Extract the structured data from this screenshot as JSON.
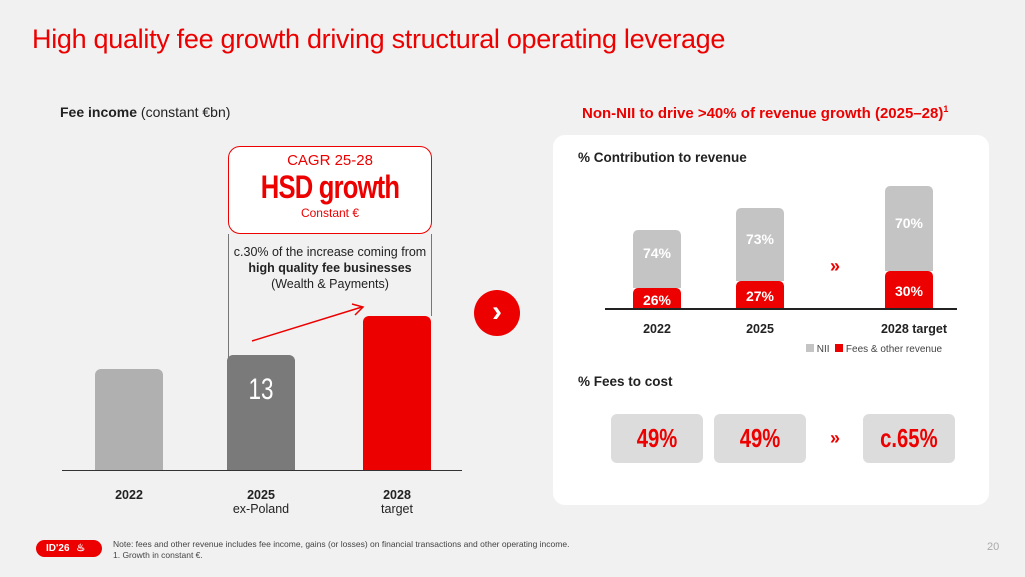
{
  "title": "High quality fee growth driving structural operating leverage",
  "left": {
    "heading": "Fee income",
    "heading_suffix": "(constant €bn)",
    "cagr": {
      "label": "CAGR 25-28",
      "value": "HSD growth",
      "note": "Constant €"
    },
    "note_pre": "c.30% of the increase coming from ",
    "note_bold": "high quality fee businesses",
    "note_post": "(Wealth & Payments)",
    "chart_data": {
      "type": "bar",
      "categories": [
        "2022",
        "2025 ex-Poland",
        "2028 target"
      ],
      "values": [
        11.4,
        13,
        17.4
      ],
      "data_labels": [
        "",
        "13",
        ""
      ],
      "colors": [
        "#b0b0b0",
        "#7a7a7a",
        "#ec0000"
      ]
    },
    "xlabels": [
      [
        "2022",
        ""
      ],
      [
        "2025",
        "ex-Poland"
      ],
      [
        "2028",
        "target"
      ]
    ],
    "bar_label": "13"
  },
  "arrow_icon": "chevron-right-icon",
  "right": {
    "heading": "Non-NII to drive >40% of revenue growth (2025–28)",
    "heading_sup": "1",
    "contribution": {
      "title": "% Contribution to revenue",
      "chart_data": {
        "type": "bar",
        "stacked": true,
        "categories": [
          "2022",
          "2025",
          "2028 target"
        ],
        "series": [
          {
            "name": "NII",
            "values": [
              74,
              73,
              70
            ],
            "labels": [
              "74%",
              "73%",
              "70%"
            ],
            "color": "#c4c4c4"
          },
          {
            "name": "Fees & other revenue",
            "values": [
              26,
              27,
              30
            ],
            "labels": [
              "26%",
              "27%",
              "30%"
            ],
            "color": "#ec0000"
          }
        ]
      },
      "legend": [
        "NII",
        "Fees & other revenue"
      ]
    },
    "fees_to_cost": {
      "title": "% Fees to cost",
      "values": [
        "49%",
        "49%",
        "c.65%"
      ]
    },
    "chevrons": "»"
  },
  "footer": {
    "badge": "ID'26",
    "note": "Note: fees and other revenue includes fee income, gains (or losses) on financial transactions and other operating income.",
    "footnote": "1.  Growth in constant €.",
    "page": "20"
  }
}
